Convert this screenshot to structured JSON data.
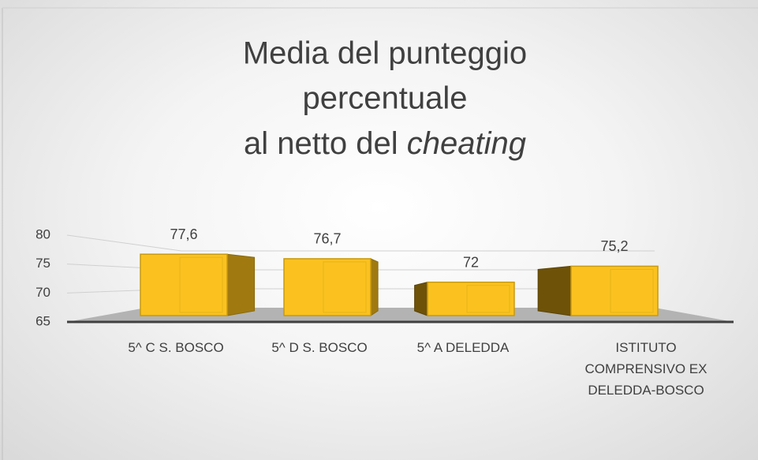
{
  "chart_data": {
    "type": "bar3d",
    "title": [
      "Media del punteggio",
      "percentuale",
      "al netto del",
      "cheating"
    ],
    "categories": [
      "5^ C S. BOSCO",
      "5^ D S. BOSCO",
      "5^ A DELEDDA",
      "ISTITUTO COMPRENSIVO EX DELEDDA-BOSCO"
    ],
    "values": [
      77.6,
      76.7,
      72,
      75.2
    ],
    "value_labels": [
      "77,6",
      "76,7",
      "72",
      "75,2"
    ],
    "color": "#fbc21f",
    "ylim": [
      65,
      80
    ],
    "yticks": [
      65,
      70,
      75,
      80
    ],
    "grid": true
  }
}
